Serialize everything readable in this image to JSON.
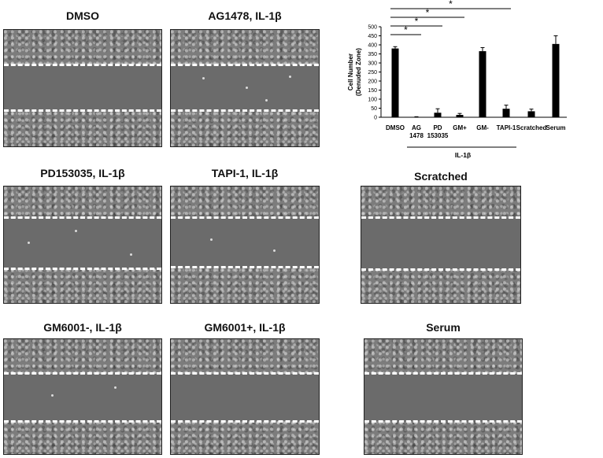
{
  "panels": [
    {
      "title": "DMSO"
    },
    {
      "title": "AG1478, IL-1β"
    },
    {
      "title": "PD153035, IL-1β"
    },
    {
      "title": "TAPI-1, IL-1β"
    },
    {
      "title": "Scratched"
    },
    {
      "title": "GM6001-, IL-1β"
    },
    {
      "title": "GM6001+, IL-1β"
    },
    {
      "title": "Serum"
    }
  ],
  "chart_data": {
    "type": "bar",
    "ylabel_line1": "Cell Number",
    "ylabel_line2": "(Denuded Zone)",
    "ylim": [
      0,
      500
    ],
    "yticks": [
      0,
      50,
      100,
      150,
      200,
      250,
      300,
      350,
      400,
      450,
      500
    ],
    "categories": [
      [
        "DMSO"
      ],
      [
        "AG",
        "1478"
      ],
      [
        "PD",
        "153035"
      ],
      [
        "GM+"
      ],
      [
        "GM-"
      ],
      [
        "TAPI-1"
      ],
      [
        "Scratched"
      ],
      [
        "Serum"
      ]
    ],
    "values": [
      380,
      2,
      25,
      13,
      365,
      47,
      33,
      405
    ],
    "errors": [
      10,
      1,
      22,
      8,
      20,
      20,
      12,
      45
    ],
    "group_label": "IL-1β",
    "significance": [
      {
        "label": "*",
        "from": 0,
        "to": 1
      },
      {
        "label": "*",
        "from": 0,
        "to": 2
      },
      {
        "label": "*",
        "from": 0,
        "to": 3
      },
      {
        "label": "*",
        "from": 0,
        "to": 5
      }
    ],
    "bar_color": "#000000"
  }
}
